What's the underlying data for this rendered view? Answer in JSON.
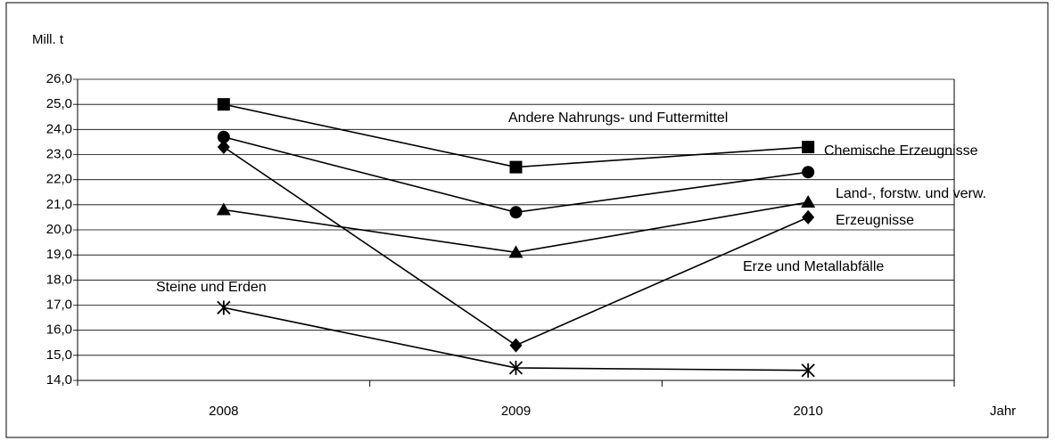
{
  "chart_data": {
    "type": "line",
    "y_label": "Mill. t",
    "x_label": "Jahr",
    "categories": [
      "2008",
      "2009",
      "2010"
    ],
    "ylim": [
      14,
      26
    ],
    "yticks": [
      {
        "value": 14,
        "label": "14,0"
      },
      {
        "value": 15,
        "label": "15,0"
      },
      {
        "value": 16,
        "label": "16,0"
      },
      {
        "value": 17,
        "label": "17,0"
      },
      {
        "value": 18,
        "label": "18,0"
      },
      {
        "value": 19,
        "label": "19,0"
      },
      {
        "value": 20,
        "label": "20,0"
      },
      {
        "value": 21,
        "label": "21,0"
      },
      {
        "value": 22,
        "label": "22,0"
      },
      {
        "value": 23,
        "label": "23,0"
      },
      {
        "value": 24,
        "label": "24,0"
      },
      {
        "value": 25,
        "label": "25,0"
      },
      {
        "value": 26,
        "label": "26,0"
      }
    ],
    "grid": true,
    "series": [
      {
        "name": "Andere Nahrungs- und Futtermittel",
        "color": "#000000",
        "marker": "square",
        "values": [
          25.0,
          22.5,
          23.3
        ]
      },
      {
        "name": "Chemische Erzeugnisse",
        "color": "#000000",
        "marker": "circle",
        "values": [
          23.7,
          20.7,
          22.3
        ]
      },
      {
        "name": "Land-, forstw. und verw. Erzeugnisse",
        "color": "#000000",
        "marker": "triangle",
        "values": [
          20.8,
          19.1,
          21.1
        ]
      },
      {
        "name": "Erze und Metallabfälle",
        "color": "#000000",
        "marker": "diamond",
        "values": [
          23.3,
          15.4,
          20.5
        ]
      },
      {
        "name": "Steine und Erden",
        "color": "#000000",
        "marker": "asterisk",
        "values": [
          16.9,
          14.5,
          14.4
        ]
      }
    ]
  }
}
